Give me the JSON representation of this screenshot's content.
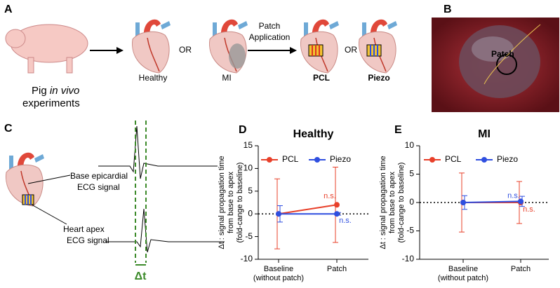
{
  "panels": {
    "a": "A",
    "b": "B",
    "c": "C",
    "d": "D",
    "e": "E"
  },
  "panel_a": {
    "pig_label": [
      "Pig",
      "in vivo",
      "experiments"
    ],
    "healthy": "Healthy",
    "or_1": "OR",
    "mi": "MI",
    "patch_application": [
      "Patch",
      "Application"
    ],
    "pcl": "PCL",
    "or_2": "OR",
    "piezo": "Piezo"
  },
  "panel_b": {
    "patch": "Patch"
  },
  "panel_c": {
    "base": [
      "Base epicardial",
      "ECG signal"
    ],
    "apex": [
      "Heart apex",
      "ECG signal"
    ],
    "delta_t": "Δt"
  },
  "chart_data": [
    {
      "type": "line",
      "title": "Healthy",
      "categories": [
        "Baseline\n(without patch)",
        "Patch"
      ],
      "y_label": [
        "Δt : signal propagation time",
        "from base to apex",
        "(fold-cange to baseline)"
      ],
      "ylim": [
        -10,
        15
      ],
      "yticks": [
        -10,
        -5,
        0,
        5,
        10,
        15
      ],
      "reference_line": 0,
      "legend": "top",
      "series": [
        {
          "name": "PCL",
          "color": "#e8402a",
          "values": [
            0,
            2
          ],
          "errors": [
            7.7,
            8.3
          ],
          "annotations": [
            null,
            "n.s."
          ]
        },
        {
          "name": "Piezo",
          "color": "#2f4fe0",
          "values": [
            0,
            0
          ],
          "errors": [
            1.8,
            0.3
          ],
          "annotations": [
            null,
            "n.s."
          ]
        }
      ]
    },
    {
      "type": "line",
      "title": "MI",
      "categories": [
        "Baseline\n(without patch)",
        "Patch"
      ],
      "y_label": [
        "Δt : signal propagation time",
        "from base to apex",
        "(fold-cange to baseline)"
      ],
      "ylim": [
        -10,
        10
      ],
      "yticks": [
        -10,
        -5,
        0,
        5,
        10
      ],
      "reference_line": 0,
      "legend": "top",
      "series": [
        {
          "name": "PCL",
          "color": "#e8402a",
          "values": [
            0,
            0
          ],
          "errors": [
            5.2,
            3.7
          ],
          "annotations": [
            null,
            "n.s."
          ]
        },
        {
          "name": "Piezo",
          "color": "#2f4fe0",
          "values": [
            0,
            0.2
          ],
          "errors": [
            1.2,
            0.9
          ],
          "annotations": [
            null,
            "n.s."
          ]
        }
      ]
    }
  ]
}
